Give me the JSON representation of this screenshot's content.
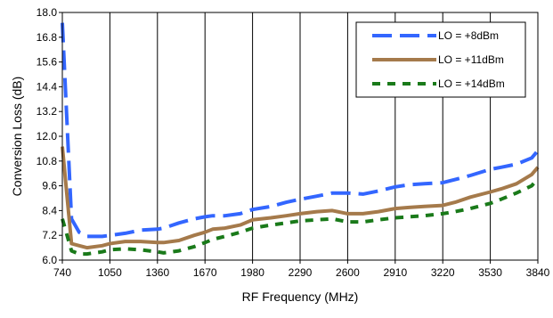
{
  "chart_data": {
    "type": "line",
    "title": "",
    "xlabel": "RF Frequency (MHz)",
    "ylabel": "Conversion Loss (dB)",
    "xlim": [
      740,
      3840
    ],
    "ylim": [
      6.0,
      18.0
    ],
    "x_ticks": [
      "740",
      "1050",
      "1360",
      "1670",
      "1980",
      "2290",
      "2600",
      "2910",
      "3220",
      "3530",
      "3840"
    ],
    "y_ticks": [
      "6.0",
      "7.2",
      "8.4",
      "9.6",
      "10.8",
      "12.0",
      "13.2",
      "14.4",
      "15.6",
      "16.8",
      "18.0"
    ],
    "grid": "vertical",
    "legend_position": "top-right",
    "series": [
      {
        "name": "LO = +8dBm",
        "color": "#3366ff",
        "style": "long-dash",
        "x": [
          740,
          800,
          850,
          900,
          1000,
          1050,
          1150,
          1250,
          1360,
          1400,
          1500,
          1600,
          1670,
          1720,
          1800,
          1900,
          1980,
          2100,
          2200,
          2290,
          2400,
          2500,
          2600,
          2700,
          2800,
          2910,
          3000,
          3100,
          3220,
          3300,
          3400,
          3530,
          3600,
          3700,
          3800,
          3840
        ],
        "y": [
          17.5,
          8.0,
          7.35,
          7.15,
          7.15,
          7.2,
          7.3,
          7.45,
          7.5,
          7.55,
          7.8,
          8.0,
          8.1,
          8.15,
          8.15,
          8.25,
          8.45,
          8.6,
          8.8,
          8.95,
          9.1,
          9.25,
          9.25,
          9.2,
          9.35,
          9.55,
          9.65,
          9.7,
          9.75,
          9.9,
          10.1,
          10.4,
          10.5,
          10.65,
          10.95,
          11.3
        ]
      },
      {
        "name": "LO = +11dBm",
        "color": "#a57a4b",
        "style": "solid",
        "x": [
          740,
          800,
          850,
          900,
          1000,
          1050,
          1150,
          1250,
          1360,
          1400,
          1500,
          1600,
          1670,
          1720,
          1800,
          1900,
          1980,
          2100,
          2200,
          2290,
          2400,
          2500,
          2600,
          2700,
          2800,
          2910,
          3000,
          3100,
          3220,
          3300,
          3400,
          3530,
          3600,
          3700,
          3800,
          3840
        ],
        "y": [
          11.5,
          6.8,
          6.7,
          6.6,
          6.7,
          6.8,
          6.9,
          6.9,
          6.85,
          6.85,
          6.95,
          7.2,
          7.35,
          7.5,
          7.55,
          7.7,
          7.95,
          8.05,
          8.15,
          8.25,
          8.35,
          8.4,
          8.25,
          8.25,
          8.35,
          8.5,
          8.55,
          8.6,
          8.65,
          8.8,
          9.05,
          9.3,
          9.45,
          9.7,
          10.15,
          10.5
        ]
      },
      {
        "name": "LO = +14dBm",
        "color": "#1a7a1a",
        "style": "short-dash",
        "x": [
          740,
          800,
          850,
          900,
          1000,
          1050,
          1150,
          1250,
          1360,
          1400,
          1500,
          1600,
          1670,
          1720,
          1800,
          1900,
          1980,
          2100,
          2200,
          2290,
          2400,
          2500,
          2600,
          2700,
          2800,
          2910,
          3000,
          3100,
          3220,
          3300,
          3400,
          3530,
          3600,
          3700,
          3800,
          3840
        ],
        "y": [
          8.0,
          6.45,
          6.3,
          6.3,
          6.4,
          6.5,
          6.55,
          6.5,
          6.4,
          6.35,
          6.45,
          6.65,
          6.85,
          7.0,
          7.15,
          7.35,
          7.55,
          7.7,
          7.8,
          7.9,
          7.95,
          8.0,
          7.85,
          7.85,
          7.95,
          8.05,
          8.1,
          8.15,
          8.25,
          8.35,
          8.5,
          8.75,
          8.95,
          9.25,
          9.6,
          9.95
        ]
      }
    ]
  }
}
